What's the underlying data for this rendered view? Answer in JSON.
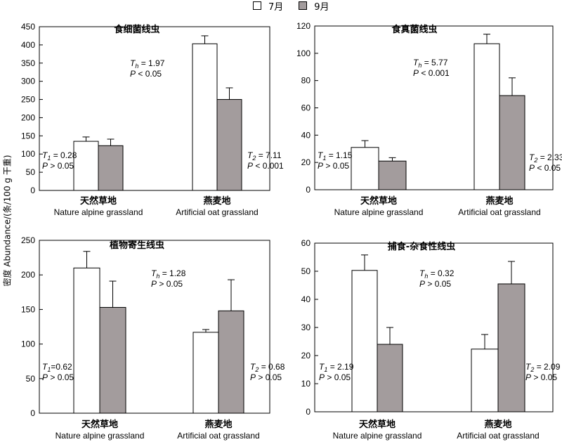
{
  "legend": {
    "series_names": [
      "7月",
      "9月"
    ],
    "colors": [
      "#ffffff",
      "#a39c9d"
    ]
  },
  "y_axis_label": "密度 Abundance/(条/100 g 干重)",
  "chart_data": [
    {
      "type": "bar",
      "title": "食细菌线虫",
      "categories": [
        {
          "zh": "天然草地",
          "en": "Nature alpine grassland"
        },
        {
          "zh": "燕麦地",
          "en": "Artificial oat grassland"
        }
      ],
      "series": [
        {
          "name": "7月",
          "values": [
            135,
            403
          ],
          "errors": [
            12,
            22
          ]
        },
        {
          "name": "9月",
          "values": [
            123,
            250
          ],
          "errors": [
            18,
            32
          ]
        }
      ],
      "ylim": [
        0,
        450
      ],
      "yticks": [
        0,
        50,
        100,
        150,
        200,
        250,
        300,
        350,
        400,
        450
      ],
      "annotations": {
        "th": {
          "name": "T",
          "sub": "h",
          "rest": " = 1.97",
          "p": "P",
          "prest": " < 0.05"
        },
        "t1": {
          "name": "T",
          "sub": "1",
          "rest": " = 0.28",
          "p": "P",
          "prest": " > 0.05"
        },
        "t2": {
          "name": "T",
          "sub": "2",
          "rest": " = 7.11",
          "p": "P",
          "prest": " < 0.001"
        }
      }
    },
    {
      "type": "bar",
      "title": "食真菌线虫",
      "categories": [
        {
          "zh": "天然草地",
          "en": "Nature alpine grassland"
        },
        {
          "zh": "燕麦地",
          "en": "Artificial oat grassland"
        }
      ],
      "series": [
        {
          "name": "7月",
          "values": [
            31,
            107
          ],
          "errors": [
            5,
            7
          ]
        },
        {
          "name": "9月",
          "values": [
            21,
            69
          ],
          "errors": [
            2.5,
            13
          ]
        }
      ],
      "ylim": [
        0,
        120
      ],
      "yticks": [
        0,
        20,
        40,
        60,
        80,
        100,
        120
      ],
      "annotations": {
        "th": {
          "name": "T",
          "sub": "h",
          "rest": " = 5.77",
          "p": "P",
          "prest": " < 0.001"
        },
        "t1": {
          "name": "T",
          "sub": "1",
          "rest": " = 1.15",
          "p": "P",
          "prest": " > 0.05"
        },
        "t2": {
          "name": "T",
          "sub": "2",
          "rest": " = 2.33",
          "p": "P",
          "prest": " < 0.05"
        }
      }
    },
    {
      "type": "bar",
      "title": "植物寄生线虫",
      "categories": [
        {
          "zh": "天然草地",
          "en": "Nature alpine grassland"
        },
        {
          "zh": "燕麦地",
          "en": "Artificial oat grassland"
        }
      ],
      "series": [
        {
          "name": "7月",
          "values": [
            210,
            117
          ],
          "errors": [
            24,
            4
          ]
        },
        {
          "name": "9月",
          "values": [
            153,
            148
          ],
          "errors": [
            38,
            45
          ]
        }
      ],
      "ylim": [
        0,
        250
      ],
      "yticks": [
        0,
        50,
        100,
        150,
        200,
        250
      ],
      "annotations": {
        "th": {
          "name": "T",
          "sub": "h",
          "rest": " = 1.28",
          "p": "P",
          "prest": " > 0.05"
        },
        "t1": {
          "name": "T",
          "sub": "1",
          "rest": "=0.62",
          "p": "P",
          "prest": " > 0.05"
        },
        "t2": {
          "name": "T",
          "sub": "2",
          "rest": " = 0.68",
          "p": "P",
          "prest": " > 0.05"
        }
      }
    },
    {
      "type": "bar",
      "title": "捕食-杂食性线虫",
      "categories": [
        {
          "zh": "天然草地",
          "en": "Nature alpine grassland"
        },
        {
          "zh": "燕麦地",
          "en": "Artificial oat grassland"
        }
      ],
      "series": [
        {
          "name": "7月",
          "values": [
            50.3,
            22.3
          ],
          "errors": [
            5.5,
            5.2
          ]
        },
        {
          "name": "9月",
          "values": [
            24,
            45.5
          ],
          "errors": [
            6,
            8
          ]
        }
      ],
      "ylim": [
        0,
        60
      ],
      "yticks": [
        0,
        10,
        20,
        30,
        40,
        50,
        60
      ],
      "annotations": {
        "th": {
          "name": "T",
          "sub": "h",
          "rest": " = 0.32",
          "p": "P",
          "prest": " > 0.05"
        },
        "t1": {
          "name": "T",
          "sub": "1",
          "rest": " = 2.19",
          "p": "P",
          "prest": " > 0.05"
        },
        "t2": {
          "name": "T",
          "sub": "2",
          "rest": " = 2.09",
          "p": "P",
          "prest": " > 0.05"
        }
      }
    }
  ]
}
